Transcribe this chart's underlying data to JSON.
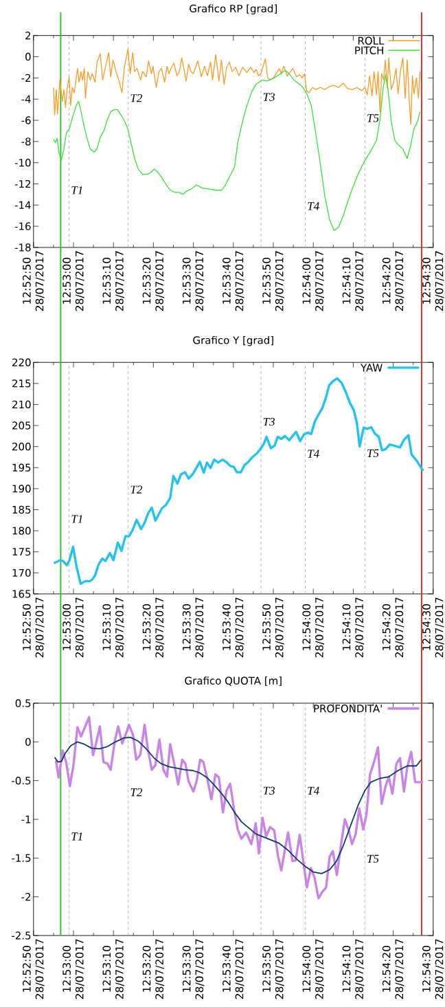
{
  "chart_data": [
    {
      "type": "line",
      "title": "Grafico RP [grad]",
      "legend": "top right",
      "xlim": [
        "2017-07-28T12:52:50",
        "2017-07-28T12:54:30"
      ],
      "xticks": [
        {
          "value": "2017-07-28T12:52:50",
          "label": "12:52:50 28/07/2017"
        },
        {
          "value": "2017-07-28T12:52:55",
          "label": null
        },
        {
          "value": "2017-07-28T12:53:00",
          "label": "12:53:00 28/07/2017"
        },
        {
          "value": "2017-07-28T12:53:05",
          "label": null
        },
        {
          "value": "2017-07-28T12:53:10",
          "label": "12:53:10 28/07/2017"
        },
        {
          "value": "2017-07-28T12:53:15",
          "label": null
        },
        {
          "value": "2017-07-28T12:53:20",
          "label": "12:53:20 28/07/2017"
        },
        {
          "value": "2017-07-28T12:53:25",
          "label": null
        },
        {
          "value": "2017-07-28T12:53:30",
          "label": "12:53:30 28/07/2017"
        },
        {
          "value": "2017-07-28T12:53:35",
          "label": null
        },
        {
          "value": "2017-07-28T12:53:40",
          "label": "12:53:40 28/07/2017"
        },
        {
          "value": "2017-07-28T12:53:45",
          "label": null
        },
        {
          "value": "2017-07-28T12:53:50",
          "label": "12:53:50 28/07/2017"
        },
        {
          "value": "2017-07-28T12:53:55",
          "label": null
        },
        {
          "value": "2017-07-28T12:54:00",
          "label": "12:54:00 28/07/2017"
        },
        {
          "value": "2017-07-28T12:54:05",
          "label": null
        },
        {
          "value": "2017-07-28T12:54:10",
          "label": "12:54:10 28/07/2017"
        },
        {
          "value": "2017-07-28T12:54:15",
          "label": null
        },
        {
          "value": "2017-07-28T12:54:20",
          "label": "12:54:20 28/07/2017"
        },
        {
          "value": "2017-07-28T12:54:25",
          "label": null
        },
        {
          "value": "2017-07-28T12:54:30",
          "label": "12:54:30 28/07/2017"
        }
      ],
      "ylim": [
        -18,
        2
      ],
      "yticks": [
        -18,
        -16,
        -14,
        -12,
        -10,
        -8,
        -6,
        -4,
        -2,
        0,
        2
      ],
      "series": [
        {
          "name": "ROLL",
          "color": "#ff9a22",
          "x": [
            "2017-07-28T12:52:55.0",
            "2017-07-28T12:52:55.3",
            "2017-07-28T12:52:55.7",
            "2017-07-28T12:52:56.0",
            "2017-07-28T12:52:56.6",
            "2017-07-28T12:52:57.2",
            "2017-07-28T12:52:57.6",
            "2017-07-28T12:52:58.0",
            "2017-07-28T12:52:58.4",
            "2017-07-28T12:52:58.9",
            "2017-07-28T12:52:59.3",
            "2017-07-28T12:52:59.7",
            "2017-07-28T12:53:00.2",
            "2017-07-28T12:53:01.0",
            "2017-07-28T12:53:01.4",
            "2017-07-28T12:53:01.9",
            "2017-07-28T12:53:02.3",
            "2017-07-28T12:53:02.7",
            "2017-07-28T12:53:03.0",
            "2017-07-28T12:53:03.6",
            "2017-07-28T12:53:04.2",
            "2017-07-28T12:53:04.7",
            "2017-07-28T12:53:05.4",
            "2017-07-28T12:53:05.9",
            "2017-07-28T12:53:06.7",
            "2017-07-28T12:53:07.3",
            "2017-07-28T12:53:08.1",
            "2017-07-28T12:53:08.8",
            "2017-07-28T12:53:09.3",
            "2017-07-28T12:53:09.9",
            "2017-07-28T12:53:10.8",
            "2017-07-28T12:53:11.5",
            "2017-07-28T12:53:12.1",
            "2017-07-28T12:53:12.8",
            "2017-07-28T12:53:13.6",
            "2017-07-28T12:53:14.2",
            "2017-07-28T12:53:14.8",
            "2017-07-28T12:53:15.3",
            "2017-07-28T12:53:15.9",
            "2017-07-28T12:53:16.8",
            "2017-07-28T12:53:17.3",
            "2017-07-28T12:53:18.2",
            "2017-07-28T12:53:18.8",
            "2017-07-28T12:53:19.5",
            "2017-07-28T12:53:19.9",
            "2017-07-28T12:53:20.7",
            "2017-07-28T12:53:21.4",
            "2017-07-28T12:53:22.0",
            "2017-07-28T12:53:22.8",
            "2017-07-28T12:53:23.4",
            "2017-07-28T12:53:23.9",
            "2017-07-28T12:53:24.4",
            "2017-07-28T12:53:25.1",
            "2017-07-28T12:53:25.9",
            "2017-07-28T12:53:26.5",
            "2017-07-28T12:53:27.1",
            "2017-07-28T12:53:28.2",
            "2017-07-28T12:53:28.8",
            "2017-07-28T12:53:29.4",
            "2017-07-28T12:53:30.0",
            "2017-07-28T12:53:31.1",
            "2017-07-28T12:53:32.0",
            "2017-07-28T12:53:32.8",
            "2017-07-28T12:53:33.5",
            "2017-07-28T12:53:34.3",
            "2017-07-28T12:53:34.8",
            "2017-07-28T12:53:35.6",
            "2017-07-28T12:53:36.4",
            "2017-07-28T12:53:37.0",
            "2017-07-28T12:53:37.7",
            "2017-07-28T12:53:38.3",
            "2017-07-28T12:53:39.0",
            "2017-07-28T12:53:39.7",
            "2017-07-28T12:53:40.6",
            "2017-07-28T12:53:41.4",
            "2017-07-28T12:53:42.3",
            "2017-07-28T12:53:43.4",
            "2017-07-28T12:53:44.3",
            "2017-07-28T12:53:45.2",
            "2017-07-28T12:53:45.7",
            "2017-07-28T12:53:46.3",
            "2017-07-28T12:53:46.9",
            "2017-07-28T12:53:48.0",
            "2017-07-28T12:53:48.6",
            "2017-07-28T12:53:49.2",
            "2017-07-28T12:53:50.0",
            "2017-07-28T12:53:50.9",
            "2017-07-28T12:53:51.5",
            "2017-07-28T12:53:52.0",
            "2017-07-28T12:53:52.6",
            "2017-07-28T12:53:53.5",
            "2017-07-28T12:53:54.3",
            "2017-07-28T12:53:54.9",
            "2017-07-28T12:53:55.8",
            "2017-07-28T12:53:56.6",
            "2017-07-28T12:53:57.2",
            "2017-07-28T12:53:57.8",
            "2017-07-28T12:53:58.3",
            "2017-07-28T12:53:58.9",
            "2017-07-28T12:53:59.8",
            "2017-07-28T12:54:00.6",
            "2017-07-28T12:54:01.8",
            "2017-07-28T12:54:02.9",
            "2017-07-28T12:54:04.1",
            "2017-07-28T12:54:05.2",
            "2017-07-28T12:54:06.3",
            "2017-07-28T12:54:07.5",
            "2017-07-28T12:54:08.6",
            "2017-07-28T12:54:09.8",
            "2017-07-28T12:54:10.9",
            "2017-07-28T12:54:12.1",
            "2017-07-28T12:54:12.9",
            "2017-07-28T12:54:13.5",
            "2017-07-28T12:54:14.1",
            "2017-07-28T12:54:14.7",
            "2017-07-28T12:54:15.2",
            "2017-07-28T12:54:15.8",
            "2017-07-28T12:54:16.2",
            "2017-07-28T12:54:16.7",
            "2017-07-28T12:54:17.1",
            "2017-07-28T12:54:17.6",
            "2017-07-28T12:54:18.0",
            "2017-07-28T12:54:18.5",
            "2017-07-28T12:54:18.9",
            "2017-07-28T12:54:19.5",
            "2017-07-28T12:54:20.1",
            "2017-07-28T12:54:20.7",
            "2017-07-28T12:54:21.2",
            "2017-07-28T12:54:21.8",
            "2017-07-28T12:54:22.4",
            "2017-07-28T12:54:23.0",
            "2017-07-28T12:54:23.5",
            "2017-07-28T12:54:24.0",
            "2017-07-28T12:54:24.4",
            "2017-07-28T12:54:24.8",
            "2017-07-28T12:54:25.2",
            "2017-07-28T12:54:25.8",
            "2017-07-28T12:54:26.3",
            "2017-07-28T12:54:26.7"
          ],
          "values": [
            -2.9,
            -5.5,
            -3.1,
            -5.4,
            -2.1,
            -4.2,
            -3.1,
            -4.8,
            -3.1,
            -1.9,
            -4.6,
            -2.9,
            -3.4,
            -1.1,
            -2.4,
            -1.4,
            -2.2,
            -1.1,
            -3.9,
            -1.4,
            -2.2,
            -1.6,
            -2.4,
            -0.5,
            0.3,
            -2.2,
            -0.8,
            0.4,
            -1.9,
            -0.3,
            -1.6,
            -2.4,
            -3.4,
            -0.9,
            0.7,
            -1.6,
            0.4,
            -1.4,
            -1.1,
            -2.2,
            -1.4,
            -1.9,
            -0.4,
            -1.6,
            -0.9,
            -2.9,
            -1.4,
            -1.1,
            -2.4,
            -0.9,
            -1.6,
            -1.1,
            -0.6,
            -1.8,
            -1.4,
            -0.1,
            -2.3,
            -0.7,
            -1.4,
            -1.6,
            -0.4,
            -1.9,
            -0.9,
            -1.8,
            -0.5,
            -2.2,
            0.2,
            -2.3,
            -0.3,
            -2.6,
            -1.0,
            -0.5,
            -1.4,
            -1.0,
            -1.8,
            -1.0,
            -1.5,
            -1.0,
            -1.5,
            -1.2,
            -1.8,
            -1.6,
            -0.2,
            -2.0,
            -2.2,
            -2.0,
            -1.5,
            -1.1,
            -1.6,
            -0.9,
            -1.8,
            -1.4,
            -1.1,
            -1.9,
            -1.7,
            -2.0,
            -1.6,
            -3.2,
            -3.4,
            -2.9,
            -3.1,
            -2.9,
            -3.1,
            -2.8,
            -2.7,
            -2.9,
            -2.5,
            -3.0,
            -3.1,
            -2.9,
            -3.2,
            -2.9,
            -3.6,
            -1.8,
            -3.7,
            -1.4,
            -3.6,
            -1.4,
            -5.2,
            -1.6,
            -2.2,
            -0.3,
            -2.9,
            -0.1,
            -3.1,
            -2.4,
            -1.1,
            -3.5,
            -1.4,
            -0.1,
            -3.9,
            -0.3,
            -4.1,
            -6.4,
            -1.8,
            -3.5,
            -2.0,
            -3.9,
            -1.4
          ]
        },
        {
          "name": "PITCH",
          "color": "#33e633",
          "x": [
            "2017-07-28T12:52:55.0",
            "2017-07-28T12:52:55.5",
            "2017-07-28T12:52:55.9",
            "2017-07-28T12:52:56.4",
            "2017-07-28T12:52:57.0",
            "2017-07-28T12:52:57.6",
            "2017-07-28T12:52:58.2",
            "2017-07-28T12:52:59.0",
            "2017-07-28T12:52:59.6",
            "2017-07-28T12:53:00.2",
            "2017-07-28T12:53:00.7",
            "2017-07-28T12:53:01.3",
            "2017-07-28T12:53:01.8",
            "2017-07-28T12:53:02.4",
            "2017-07-28T12:53:03.3",
            "2017-07-28T12:53:04.2",
            "2017-07-28T12:53:05.2",
            "2017-07-28T12:53:05.9",
            "2017-07-28T12:53:06.7",
            "2017-07-28T12:53:07.6",
            "2017-07-28T12:53:08.5",
            "2017-07-28T12:53:09.3",
            "2017-07-28T12:53:10.2",
            "2017-07-28T12:53:11.0",
            "2017-07-28T12:53:11.9",
            "2017-07-28T12:53:12.8",
            "2017-07-28T12:53:13.6",
            "2017-07-28T12:53:14.5",
            "2017-07-28T12:53:15.3",
            "2017-07-28T12:53:16.2",
            "2017-07-28T12:53:17.3",
            "2017-07-28T12:53:18.5",
            "2017-07-28T12:53:19.4",
            "2017-07-28T12:53:20.2",
            "2017-07-28T12:53:21.1",
            "2017-07-28T12:53:21.9",
            "2017-07-28T12:53:23.1",
            "2017-07-28T12:53:24.2",
            "2017-07-28T12:53:25.4",
            "2017-07-28T12:53:26.5",
            "2017-07-28T12:53:27.4",
            "2017-07-28T12:53:28.2",
            "2017-07-28T12:53:29.4",
            "2017-07-28T12:53:30.8",
            "2017-07-28T12:53:32.2",
            "2017-07-28T12:53:34.0",
            "2017-07-28T12:53:35.7",
            "2017-07-28T12:53:37.1",
            "2017-07-28T12:53:38.0",
            "2017-07-28T12:53:39.1",
            "2017-07-28T12:53:40.3",
            "2017-07-28T12:53:41.1",
            "2017-07-28T12:53:42.3",
            "2017-07-28T12:53:43.4",
            "2017-07-28T12:53:44.6",
            "2017-07-28T12:53:45.7",
            "2017-07-28T12:53:47.2",
            "2017-07-28T12:53:48.3",
            "2017-07-28T12:53:49.7",
            "2017-07-28T12:53:51.5",
            "2017-07-28T12:53:52.9",
            "2017-07-28T12:53:53.7",
            "2017-07-28T12:53:55.2",
            "2017-07-28T12:53:57.2",
            "2017-07-28T12:53:58.3",
            "2017-07-28T12:53:59.5",
            "2017-07-28T12:54:00.6",
            "2017-07-28T12:54:01.8",
            "2017-07-28T12:54:02.9",
            "2017-07-28T12:54:04.1",
            "2017-07-28T12:54:05.2",
            "2017-07-28T12:54:06.3",
            "2017-07-28T12:54:07.5",
            "2017-07-28T12:54:08.6",
            "2017-07-28T12:54:09.8",
            "2017-07-28T12:54:11.2",
            "2017-07-28T12:54:12.6",
            "2017-07-28T12:54:14.4",
            "2017-07-28T12:54:15.8",
            "2017-07-28T12:54:16.7",
            "2017-07-28T12:54:17.5",
            "2017-07-28T12:54:18.1",
            "2017-07-28T12:54:18.7",
            "2017-07-28T12:54:19.5",
            "2017-07-28T12:54:20.4",
            "2017-07-28T12:54:21.2",
            "2017-07-28T12:54:22.4",
            "2017-07-28T12:54:23.5",
            "2017-07-28T12:54:24.4",
            "2017-07-28T12:54:25.2",
            "2017-07-28T12:54:26.1",
            "2017-07-28T12:54:26.7"
          ],
          "values": [
            -7.8,
            -8.1,
            -7.7,
            -9.1,
            -9.7,
            -8.7,
            -7.2,
            -6.8,
            -5.9,
            -5.2,
            -4.6,
            -4.2,
            -5.0,
            -6.1,
            -7.6,
            -8.7,
            -9.0,
            -8.7,
            -7.6,
            -7.0,
            -5.9,
            -5.2,
            -5.0,
            -5.0,
            -5.5,
            -6.1,
            -6.8,
            -8.3,
            -9.6,
            -10.6,
            -11.1,
            -11.1,
            -10.9,
            -10.6,
            -10.9,
            -11.3,
            -12.0,
            -12.6,
            -12.8,
            -12.8,
            -13.0,
            -12.7,
            -12.5,
            -12.1,
            -12.4,
            -12.5,
            -12.6,
            -12.6,
            -12.1,
            -11.3,
            -10.4,
            -8.1,
            -6.1,
            -4.6,
            -3.3,
            -2.6,
            -2.2,
            -2.3,
            -2.1,
            -1.7,
            -1.3,
            -1.5,
            -2.2,
            -2.8,
            -3.4,
            -4.6,
            -7.2,
            -10.2,
            -13.2,
            -15.4,
            -16.4,
            -16.1,
            -15.0,
            -13.7,
            -12.4,
            -11.1,
            -10.0,
            -8.9,
            -7.9,
            -5.9,
            -2.9,
            -1.7,
            -3.1,
            -6.1,
            -7.9,
            -8.3,
            -8.7,
            -9.6,
            -8.3,
            -6.8,
            -6.1,
            -5.2
          ]
        }
      ],
      "ref_lines": [
        {
          "axis": "x",
          "value": "2017-07-28T12:52:56.8",
          "color": "#22c022",
          "line_style": "solid"
        },
        {
          "axis": "x",
          "value": "2017-07-28T12:52:58.9",
          "color": "#aaaaaa",
          "line_style": "dashed"
        },
        {
          "axis": "x",
          "value": "2017-07-28T12:53:13.7",
          "color": "#aaaaaa",
          "line_style": "dashed"
        },
        {
          "axis": "x",
          "value": "2017-07-28T12:53:46.9",
          "color": "#aaaaaa",
          "line_style": "dashed"
        },
        {
          "axis": "x",
          "value": "2017-07-28T12:53:58.0",
          "color": "#aaaaaa",
          "line_style": "dashed"
        },
        {
          "axis": "x",
          "value": "2017-07-28T12:54:12.9",
          "color": "#aaaaaa",
          "line_style": "dashed"
        },
        {
          "axis": "x",
          "value": "2017-07-28T12:54:27.1",
          "color": "#e41e1e",
          "line_style": "solid"
        }
      ],
      "annotations": [
        {
          "text": "T1",
          "x": "2017-07-28T12:52:58.9",
          "y": -12.6
        },
        {
          "text": "T2",
          "x": "2017-07-28T12:53:13.7",
          "y": -3.9
        },
        {
          "text": "T3",
          "x": "2017-07-28T12:53:46.9",
          "y": -3.8
        },
        {
          "text": "T4",
          "x": "2017-07-28T12:53:58.0",
          "y": -14.1
        },
        {
          "text": "T5",
          "x": "2017-07-28T12:54:12.9",
          "y": -5.8
        }
      ]
    },
    {
      "type": "line",
      "title": "Grafico Y [grad]",
      "legend": "top right",
      "xlim": [
        "2017-07-28T12:52:50",
        "2017-07-28T12:54:30"
      ],
      "xticks": [
        {
          "value": "2017-07-28T12:52:50",
          "label": "12:52:50 28/07/2017"
        },
        {
          "value": "2017-07-28T12:52:55",
          "label": null
        },
        {
          "value": "2017-07-28T12:53:00",
          "label": "12:53:00 28/07/2017"
        },
        {
          "value": "2017-07-28T12:53:05",
          "label": null
        },
        {
          "value": "2017-07-28T12:53:10",
          "label": "12:53:10 28/07/2017"
        },
        {
          "value": "2017-07-28T12:53:15",
          "label": null
        },
        {
          "value": "2017-07-28T12:53:20",
          "label": "12:53:20 28/07/2017"
        },
        {
          "value": "2017-07-28T12:53:25",
          "label": null
        },
        {
          "value": "2017-07-28T12:53:30",
          "label": "12:53:30 28/07/2017"
        },
        {
          "value": "2017-07-28T12:53:35",
          "label": null
        },
        {
          "value": "2017-07-28T12:53:40",
          "label": "12:53:40 28/07/2017"
        },
        {
          "value": "2017-07-28T12:53:45",
          "label": null
        },
        {
          "value": "2017-07-28T12:53:50",
          "label": "12:53:50 28/07/2017"
        },
        {
          "value": "2017-07-28T12:53:55",
          "label": null
        },
        {
          "value": "2017-07-28T12:54:00",
          "label": "12:54:00 28/07/2017"
        },
        {
          "value": "2017-07-28T12:54:05",
          "label": null
        },
        {
          "value": "2017-07-28T12:54:10",
          "label": "12:54:10 28/07/2017"
        },
        {
          "value": "2017-07-28T12:54:15",
          "label": null
        },
        {
          "value": "2017-07-28T12:54:20",
          "label": "12:54:20 28/07/2017"
        },
        {
          "value": "2017-07-28T12:54:25",
          "label": null
        },
        {
          "value": "2017-07-28T12:54:30",
          "label": "12:54:30 28/07/2017"
        }
      ],
      "ylim": [
        165,
        220
      ],
      "yticks": [
        165,
        170,
        175,
        180,
        185,
        190,
        195,
        200,
        205,
        210,
        215,
        220
      ],
      "series": [
        {
          "name": "YAW",
          "color": "#20c4f0",
          "x": [
            "2017-07-28T12:52:55.1",
            "2017-07-28T12:52:56.7",
            "2017-07-28T12:52:57.4",
            "2017-07-28T12:52:58.3",
            "2017-07-28T12:52:59.0",
            "2017-07-28T12:52:59.9",
            "2017-07-28T12:53:00.8",
            "2017-07-28T12:53:01.8",
            "2017-07-28T12:53:02.9",
            "2017-07-28T12:53:04.0",
            "2017-07-28T12:53:04.7",
            "2017-07-28T12:53:05.4",
            "2017-07-28T12:53:06.3",
            "2017-07-28T12:53:07.2",
            "2017-07-28T12:53:08.0",
            "2017-07-28T12:53:09.1",
            "2017-07-28T12:53:10.0",
            "2017-07-28T12:53:11.1",
            "2017-07-28T12:53:12.0",
            "2017-07-28T12:53:13.0",
            "2017-07-28T12:53:13.9",
            "2017-07-28T12:53:14.8",
            "2017-07-28T12:53:15.8",
            "2017-07-28T12:53:16.9",
            "2017-07-28T12:53:17.8",
            "2017-07-28T12:53:18.7",
            "2017-07-28T12:53:19.6",
            "2017-07-28T12:53:20.5",
            "2017-07-28T12:53:22.1",
            "2017-07-28T12:53:23.1",
            "2017-07-28T12:53:24.2",
            "2017-07-28T12:53:25.0",
            "2017-07-28T12:53:26.0",
            "2017-07-28T12:53:26.9",
            "2017-07-28T12:53:27.9",
            "2017-07-28T12:53:28.8",
            "2017-07-28T12:53:29.9",
            "2017-07-28T12:53:30.9",
            "2017-07-28T12:53:31.6",
            "2017-07-28T12:53:32.6",
            "2017-07-28T12:53:33.4",
            "2017-07-28T12:53:34.3",
            "2017-07-28T12:53:35.2",
            "2017-07-28T12:53:36.2",
            "2017-07-28T12:53:37.3",
            "2017-07-28T12:53:38.4",
            "2017-07-28T12:53:39.2",
            "2017-07-28T12:53:40.1",
            "2017-07-28T12:53:40.9",
            "2017-07-28T12:53:41.9",
            "2017-07-28T12:53:42.8",
            "2017-07-28T12:53:43.8",
            "2017-07-28T12:53:44.8",
            "2017-07-28T12:53:45.8",
            "2017-07-28T12:53:46.7",
            "2017-07-28T12:53:47.6",
            "2017-07-28T12:53:48.3",
            "2017-07-28T12:53:49.4",
            "2017-07-28T12:53:50.3",
            "2017-07-28T12:53:51.1",
            "2017-07-28T12:53:52.0",
            "2017-07-28T12:53:52.9",
            "2017-07-28T12:53:54.0",
            "2017-07-28T12:53:54.8",
            "2017-07-28T12:53:55.7",
            "2017-07-28T12:53:56.7",
            "2017-07-28T12:53:57.7",
            "2017-07-28T12:53:58.6",
            "2017-07-28T12:53:59.5",
            "2017-07-28T12:54:00.4",
            "2017-07-28T12:54:01.4",
            "2017-07-28T12:54:02.3",
            "2017-07-28T12:54:03.2",
            "2017-07-28T12:54:04.0",
            "2017-07-28T12:54:04.9",
            "2017-07-28T12:54:06.0",
            "2017-07-28T12:54:07.1",
            "2017-07-28T12:54:08.2",
            "2017-07-28T12:54:09.2",
            "2017-07-28T12:54:10.1",
            "2017-07-28T12:54:10.9",
            "2017-07-28T12:54:11.6",
            "2017-07-28T12:54:12.6",
            "2017-07-28T12:54:13.5",
            "2017-07-28T12:54:14.5",
            "2017-07-28T12:54:15.4",
            "2017-07-28T12:54:16.4",
            "2017-07-28T12:54:17.2",
            "2017-07-28T12:54:18.1",
            "2017-07-28T12:54:19.1",
            "2017-07-28T12:54:20.2",
            "2017-07-28T12:54:21.7",
            "2017-07-28T12:54:22.7",
            "2017-07-28T12:54:23.8",
            "2017-07-28T12:54:24.6",
            "2017-07-28T12:54:25.9",
            "2017-07-28T12:54:27.5"
          ],
          "values": [
            172.3,
            173.0,
            172.8,
            171.8,
            173.0,
            176.2,
            171.3,
            167.4,
            168.0,
            168.0,
            168.4,
            169.4,
            172.0,
            173.4,
            172.8,
            174.7,
            173.0,
            177.2,
            175.2,
            178.7,
            178.7,
            180.2,
            182.6,
            180.4,
            181.9,
            184.2,
            185.5,
            182.4,
            185.3,
            186.1,
            187.8,
            193.0,
            191.2,
            193.4,
            193.9,
            192.4,
            193.5,
            195.2,
            196.4,
            193.8,
            196.2,
            194.9,
            196.9,
            196.2,
            196.9,
            196.2,
            195.4,
            195.2,
            193.9,
            193.9,
            195.6,
            196.4,
            197.5,
            198.3,
            199.3,
            200.6,
            202.3,
            199.6,
            200.2,
            202.3,
            201.8,
            202.5,
            201.5,
            202.5,
            203.5,
            201.3,
            202.9,
            203.3,
            203.0,
            206.0,
            207.7,
            209.2,
            211.8,
            214.6,
            215.5,
            216.2,
            215.1,
            212.8,
            210.3,
            208.7,
            205.7,
            200.0,
            204.5,
            204.2,
            204.6,
            203.1,
            202.3,
            199.1,
            199.4,
            200.5,
            200.2,
            199.8,
            201.6,
            202.7,
            198.1,
            196.6,
            194.2
          ]
        }
      ],
      "ref_lines": [
        {
          "axis": "x",
          "value": "2017-07-28T12:52:56.8",
          "color": "#22c022",
          "line_style": "solid"
        },
        {
          "axis": "x",
          "value": "2017-07-28T12:52:58.9",
          "color": "#aaaaaa",
          "line_style": "dashed"
        },
        {
          "axis": "x",
          "value": "2017-07-28T12:53:13.7",
          "color": "#aaaaaa",
          "line_style": "dashed"
        },
        {
          "axis": "x",
          "value": "2017-07-28T12:53:46.9",
          "color": "#aaaaaa",
          "line_style": "dashed"
        },
        {
          "axis": "x",
          "value": "2017-07-28T12:53:58.0",
          "color": "#aaaaaa",
          "line_style": "dashed"
        },
        {
          "axis": "x",
          "value": "2017-07-28T12:54:12.9",
          "color": "#aaaaaa",
          "line_style": "dashed"
        },
        {
          "axis": "x",
          "value": "2017-07-28T12:54:27.1",
          "color": "#e41e1e",
          "line_style": "solid"
        }
      ],
      "annotations": [
        {
          "text": "T1",
          "x": "2017-07-28T12:52:58.9",
          "y": 182.8
        },
        {
          "text": "T2",
          "x": "2017-07-28T12:53:13.7",
          "y": 189.8
        },
        {
          "text": "T3",
          "x": "2017-07-28T12:53:46.9",
          "y": 205.9
        },
        {
          "text": "T4",
          "x": "2017-07-28T12:53:58.0",
          "y": 198.3
        },
        {
          "text": "T5",
          "x": "2017-07-28T12:54:12.9",
          "y": 198.4
        }
      ]
    },
    {
      "type": "line",
      "title": "Grafico QUOTA [m]",
      "legend": "top right",
      "xlim": [
        "2017-07-28T12:52:50",
        "2017-07-28T12:54:30"
      ],
      "xticks": [
        {
          "value": "2017-07-28T12:52:50",
          "label": "12:52:50 28/07/2017"
        },
        {
          "value": "2017-07-28T12:52:55",
          "label": null
        },
        {
          "value": "2017-07-28T12:53:00",
          "label": "12:53:00 28/07/2017"
        },
        {
          "value": "2017-07-28T12:53:05",
          "label": null
        },
        {
          "value": "2017-07-28T12:53:10",
          "label": "12:53:10 28/07/2017"
        },
        {
          "value": "2017-07-28T12:53:15",
          "label": null
        },
        {
          "value": "2017-07-28T12:53:20",
          "label": "12:53:20 28/07/2017"
        },
        {
          "value": "2017-07-28T12:53:25",
          "label": null
        },
        {
          "value": "2017-07-28T12:53:30",
          "label": "12:53:30 28/07/2017"
        },
        {
          "value": "2017-07-28T12:53:35",
          "label": null
        },
        {
          "value": "2017-07-28T12:53:40",
          "label": "12:53:40 28/07/2017"
        },
        {
          "value": "2017-07-28T12:53:45",
          "label": null
        },
        {
          "value": "2017-07-28T12:53:50",
          "label": "12:53:50 28/07/2017"
        },
        {
          "value": "2017-07-28T12:53:55",
          "label": null
        },
        {
          "value": "2017-07-28T12:54:00",
          "label": "12:54:00 28/07/2017"
        },
        {
          "value": "2017-07-28T12:54:05",
          "label": null
        },
        {
          "value": "2017-07-28T12:54:10",
          "label": "12:54:10 28/07/2017"
        },
        {
          "value": "2017-07-28T12:54:15",
          "label": null
        },
        {
          "value": "2017-07-28T12:54:20",
          "label": "12:54:20 28/07/2017"
        },
        {
          "value": "2017-07-28T12:54:25",
          "label": null
        },
        {
          "value": "2017-07-28T12:54:30",
          "label": "12:54:30 28/07/2017"
        }
      ],
      "ylim": [
        -2.5,
        0.5
      ],
      "yticks": [
        -2.5,
        -2,
        -1.5,
        -1,
        -0.5,
        0,
        0.5
      ],
      "series": [
        {
          "name": "PROFONDITA'",
          "color": "#c884e8",
          "x": [
            "2017-07-28T12:52:55.6",
            "2017-07-28T12:52:56.3",
            "2017-07-28T12:52:57.3",
            "2017-07-28T12:52:58.2",
            "2017-07-28T12:52:59.1",
            "2017-07-28T12:53:00.0",
            "2017-07-28T12:53:01.0",
            "2017-07-28T12:53:01.9",
            "2017-07-28T12:53:02.7",
            "2017-07-28T12:53:03.9",
            "2017-07-28T12:53:04.9",
            "2017-07-28T12:53:05.6",
            "2017-07-28T12:53:06.6",
            "2017-07-28T12:53:07.5",
            "2017-07-28T12:53:08.5",
            "2017-07-28T12:53:09.3",
            "2017-07-28T12:53:10.4",
            "2017-07-28T12:53:11.2",
            "2017-07-28T12:53:12.2",
            "2017-07-28T12:53:13.1",
            "2017-07-28T12:53:13.9",
            "2017-07-28T12:53:14.9",
            "2017-07-28T12:53:15.7",
            "2017-07-28T12:53:16.7",
            "2017-07-28T12:53:17.8",
            "2017-07-28T12:53:18.6",
            "2017-07-28T12:53:19.6",
            "2017-07-28T12:53:20.5",
            "2017-07-28T12:53:21.5",
            "2017-07-28T12:53:22.5",
            "2017-07-28T12:53:23.4",
            "2017-07-28T12:53:24.2",
            "2017-07-28T12:53:25.3",
            "2017-07-28T12:53:26.2",
            "2017-07-28T12:53:27.2",
            "2017-07-28T12:53:28.0",
            "2017-07-28T12:53:28.8",
            "2017-07-28T12:53:30.0",
            "2017-07-28T12:53:30.8",
            "2017-07-28T12:53:31.7",
            "2017-07-28T12:53:32.5",
            "2017-07-28T12:53:33.5",
            "2017-07-28T12:53:34.5",
            "2017-07-28T12:53:35.5",
            "2017-07-28T12:53:36.4",
            "2017-07-28T12:53:37.4",
            "2017-07-28T12:53:38.3",
            "2017-07-28T12:53:39.2",
            "2017-07-28T12:53:40.2",
            "2017-07-28T12:53:41.1",
            "2017-07-28T12:53:42.0",
            "2017-07-28T12:53:43.2",
            "2017-07-28T12:53:44.5",
            "2017-07-28T12:53:45.6",
            "2017-07-28T12:53:46.4",
            "2017-07-28T12:53:47.3",
            "2017-07-28T12:53:48.2",
            "2017-07-28T12:53:49.2",
            "2017-07-28T12:53:50.2",
            "2017-07-28T12:53:51.2",
            "2017-07-28T12:53:52.0",
            "2017-07-28T12:53:52.9",
            "2017-07-28T12:53:53.7",
            "2017-07-28T12:53:54.8",
            "2017-07-28T12:53:55.6",
            "2017-07-28T12:53:56.6",
            "2017-07-28T12:53:57.5",
            "2017-07-28T12:53:58.4",
            "2017-07-28T12:53:59.4",
            "2017-07-28T12:54:00.3",
            "2017-07-28T12:54:01.3",
            "2017-07-28T12:54:02.2",
            "2017-07-28T12:54:03.2",
            "2017-07-28T12:54:04.1",
            "2017-07-28T12:54:04.9",
            "2017-07-28T12:54:05.9",
            "2017-07-28T12:54:06.9",
            "2017-07-28T12:54:07.9",
            "2017-07-28T12:54:08.8",
            "2017-07-28T12:54:09.7",
            "2017-07-28T12:54:10.6",
            "2017-07-28T12:54:11.5",
            "2017-07-28T12:54:12.5",
            "2017-07-28T12:54:13.3",
            "2017-07-28T12:54:14.2",
            "2017-07-28T12:54:15.2",
            "2017-07-28T12:54:16.2",
            "2017-07-28T12:54:17.1",
            "2017-07-28T12:54:18.1",
            "2017-07-28T12:54:18.9",
            "2017-07-28T12:54:19.8",
            "2017-07-28T12:54:20.8",
            "2017-07-28T12:54:21.7",
            "2017-07-28T12:54:22.7",
            "2017-07-28T12:54:23.5",
            "2017-07-28T12:54:24.5",
            "2017-07-28T12:54:25.5",
            "2017-07-28T12:54:26.8",
            "2017-07-28T12:54:27.5"
          ],
          "values": [
            -0.24,
            -0.46,
            -0.11,
            -0.27,
            -0.57,
            -0.3,
            0.19,
            0.07,
            0.17,
            0.32,
            -0.17,
            -0.03,
            0.2,
            -0.26,
            -0.28,
            -0.36,
            0.03,
            0.2,
            -0.02,
            0.1,
            0.22,
            0.09,
            -0.23,
            -0.17,
            0.22,
            -0.09,
            -0.36,
            -0.3,
            0.03,
            -0.36,
            -0.45,
            -0.03,
            -0.31,
            -0.55,
            -0.23,
            -0.28,
            -0.51,
            -0.64,
            -0.51,
            -0.23,
            -0.26,
            -0.48,
            -0.74,
            -0.42,
            -0.46,
            -0.91,
            -0.63,
            -0.54,
            -0.88,
            -1.13,
            -1.25,
            -1.17,
            -1.32,
            -1.05,
            -1.44,
            -0.98,
            -1.22,
            -1.1,
            -1.14,
            -1.48,
            -1.66,
            -1.39,
            -1.17,
            -1.54,
            -1.53,
            -1.2,
            -1.54,
            -1.88,
            -1.63,
            -1.75,
            -2.02,
            -1.94,
            -1.88,
            -1.48,
            -1.41,
            -1.72,
            -1.34,
            -1.0,
            -1.13,
            -1.32,
            -1.19,
            -0.86,
            -1.13,
            -0.94,
            -0.42,
            -0.26,
            -0.07,
            -0.8,
            -0.57,
            -0.45,
            -0.67,
            -0.28,
            -0.21,
            -0.64,
            -0.33,
            -0.13,
            -0.52,
            -0.52,
            -0.52
          ]
        },
        {
          "color": "#0b3b6b",
          "x": [
            "2017-07-28T12:52:55.3",
            "2017-07-28T12:52:56.1",
            "2017-07-28T12:52:57.0",
            "2017-07-28T12:52:57.9",
            "2017-07-28T12:52:59.3",
            "2017-07-28T12:53:01.0",
            "2017-07-28T12:53:02.7",
            "2017-07-28T12:53:04.5",
            "2017-07-28T12:53:06.5",
            "2017-07-28T12:53:08.5",
            "2017-07-28T12:53:10.5",
            "2017-07-28T12:53:12.5",
            "2017-07-28T12:53:14.2",
            "2017-07-28T12:53:16.2",
            "2017-07-28T12:53:18.2",
            "2017-07-28T12:53:20.2",
            "2017-07-28T12:53:21.9",
            "2017-07-28T12:53:23.9",
            "2017-07-28T12:53:25.9",
            "2017-07-28T12:53:27.9",
            "2017-07-28T12:53:29.9",
            "2017-07-28T12:53:31.6",
            "2017-07-28T12:53:33.4",
            "2017-07-28T12:53:35.1",
            "2017-07-28T12:53:36.8",
            "2017-07-28T12:53:38.6",
            "2017-07-28T12:53:40.3",
            "2017-07-28T12:53:42.0",
            "2017-07-28T12:53:42.9",
            "2017-07-28T12:53:45.7",
            "2017-07-28T12:53:48.6",
            "2017-07-28T12:53:51.5",
            "2017-07-28T12:53:53.7",
            "2017-07-28T12:53:56.0",
            "2017-07-28T12:53:58.3",
            "2017-07-28T12:54:00.0",
            "2017-07-28T12:54:02.1",
            "2017-07-28T12:54:04.1",
            "2017-07-28T12:54:05.8",
            "2017-07-28T12:54:07.5",
            "2017-07-28T12:54:09.2",
            "2017-07-28T12:54:11.2",
            "2017-07-28T12:54:12.9",
            "2017-07-28T12:54:14.4",
            "2017-07-28T12:54:16.7",
            "2017-07-28T12:54:18.9",
            "2017-07-28T12:54:21.2",
            "2017-07-28T12:54:23.5",
            "2017-07-28T12:54:25.8",
            "2017-07-28T12:54:27.0"
          ],
          "values": [
            -0.2,
            -0.26,
            -0.25,
            -0.15,
            -0.05,
            0.0,
            -0.03,
            -0.08,
            -0.09,
            -0.06,
            0.0,
            0.05,
            0.06,
            0.01,
            -0.09,
            -0.21,
            -0.28,
            -0.32,
            -0.34,
            -0.36,
            -0.37,
            -0.4,
            -0.46,
            -0.55,
            -0.65,
            -0.77,
            -0.91,
            -1.03,
            -1.07,
            -1.19,
            -1.25,
            -1.31,
            -1.4,
            -1.52,
            -1.62,
            -1.68,
            -1.7,
            -1.65,
            -1.54,
            -1.34,
            -1.1,
            -0.82,
            -0.63,
            -0.52,
            -0.47,
            -0.45,
            -0.37,
            -0.31,
            -0.31,
            -0.23
          ]
        }
      ],
      "ref_lines": [
        {
          "axis": "x",
          "value": "2017-07-28T12:52:56.8",
          "color": "#22c022",
          "line_style": "solid"
        },
        {
          "axis": "x",
          "value": "2017-07-28T12:52:58.9",
          "color": "#aaaaaa",
          "line_style": "dashed"
        },
        {
          "axis": "x",
          "value": "2017-07-28T12:53:13.7",
          "color": "#aaaaaa",
          "line_style": "dashed"
        },
        {
          "axis": "x",
          "value": "2017-07-28T12:53:46.9",
          "color": "#aaaaaa",
          "line_style": "dashed"
        },
        {
          "axis": "x",
          "value": "2017-07-28T12:53:58.0",
          "color": "#aaaaaa",
          "line_style": "dashed"
        },
        {
          "axis": "x",
          "value": "2017-07-28T12:54:12.9",
          "color": "#aaaaaa",
          "line_style": "dashed"
        },
        {
          "axis": "x",
          "value": "2017-07-28T12:54:27.1",
          "color": "#e41e1e",
          "line_style": "solid"
        }
      ],
      "annotations": [
        {
          "text": "T1",
          "x": "2017-07-28T12:52:58.9",
          "y": -1.22
        },
        {
          "text": "T2",
          "x": "2017-07-28T12:53:13.7",
          "y": -0.65
        },
        {
          "text": "T3",
          "x": "2017-07-28T12:53:46.9",
          "y": -0.63
        },
        {
          "text": "T4",
          "x": "2017-07-28T12:53:58.0",
          "y": -0.63
        },
        {
          "text": "T5",
          "x": "2017-07-28T12:54:12.9",
          "y": -1.51
        }
      ]
    }
  ]
}
